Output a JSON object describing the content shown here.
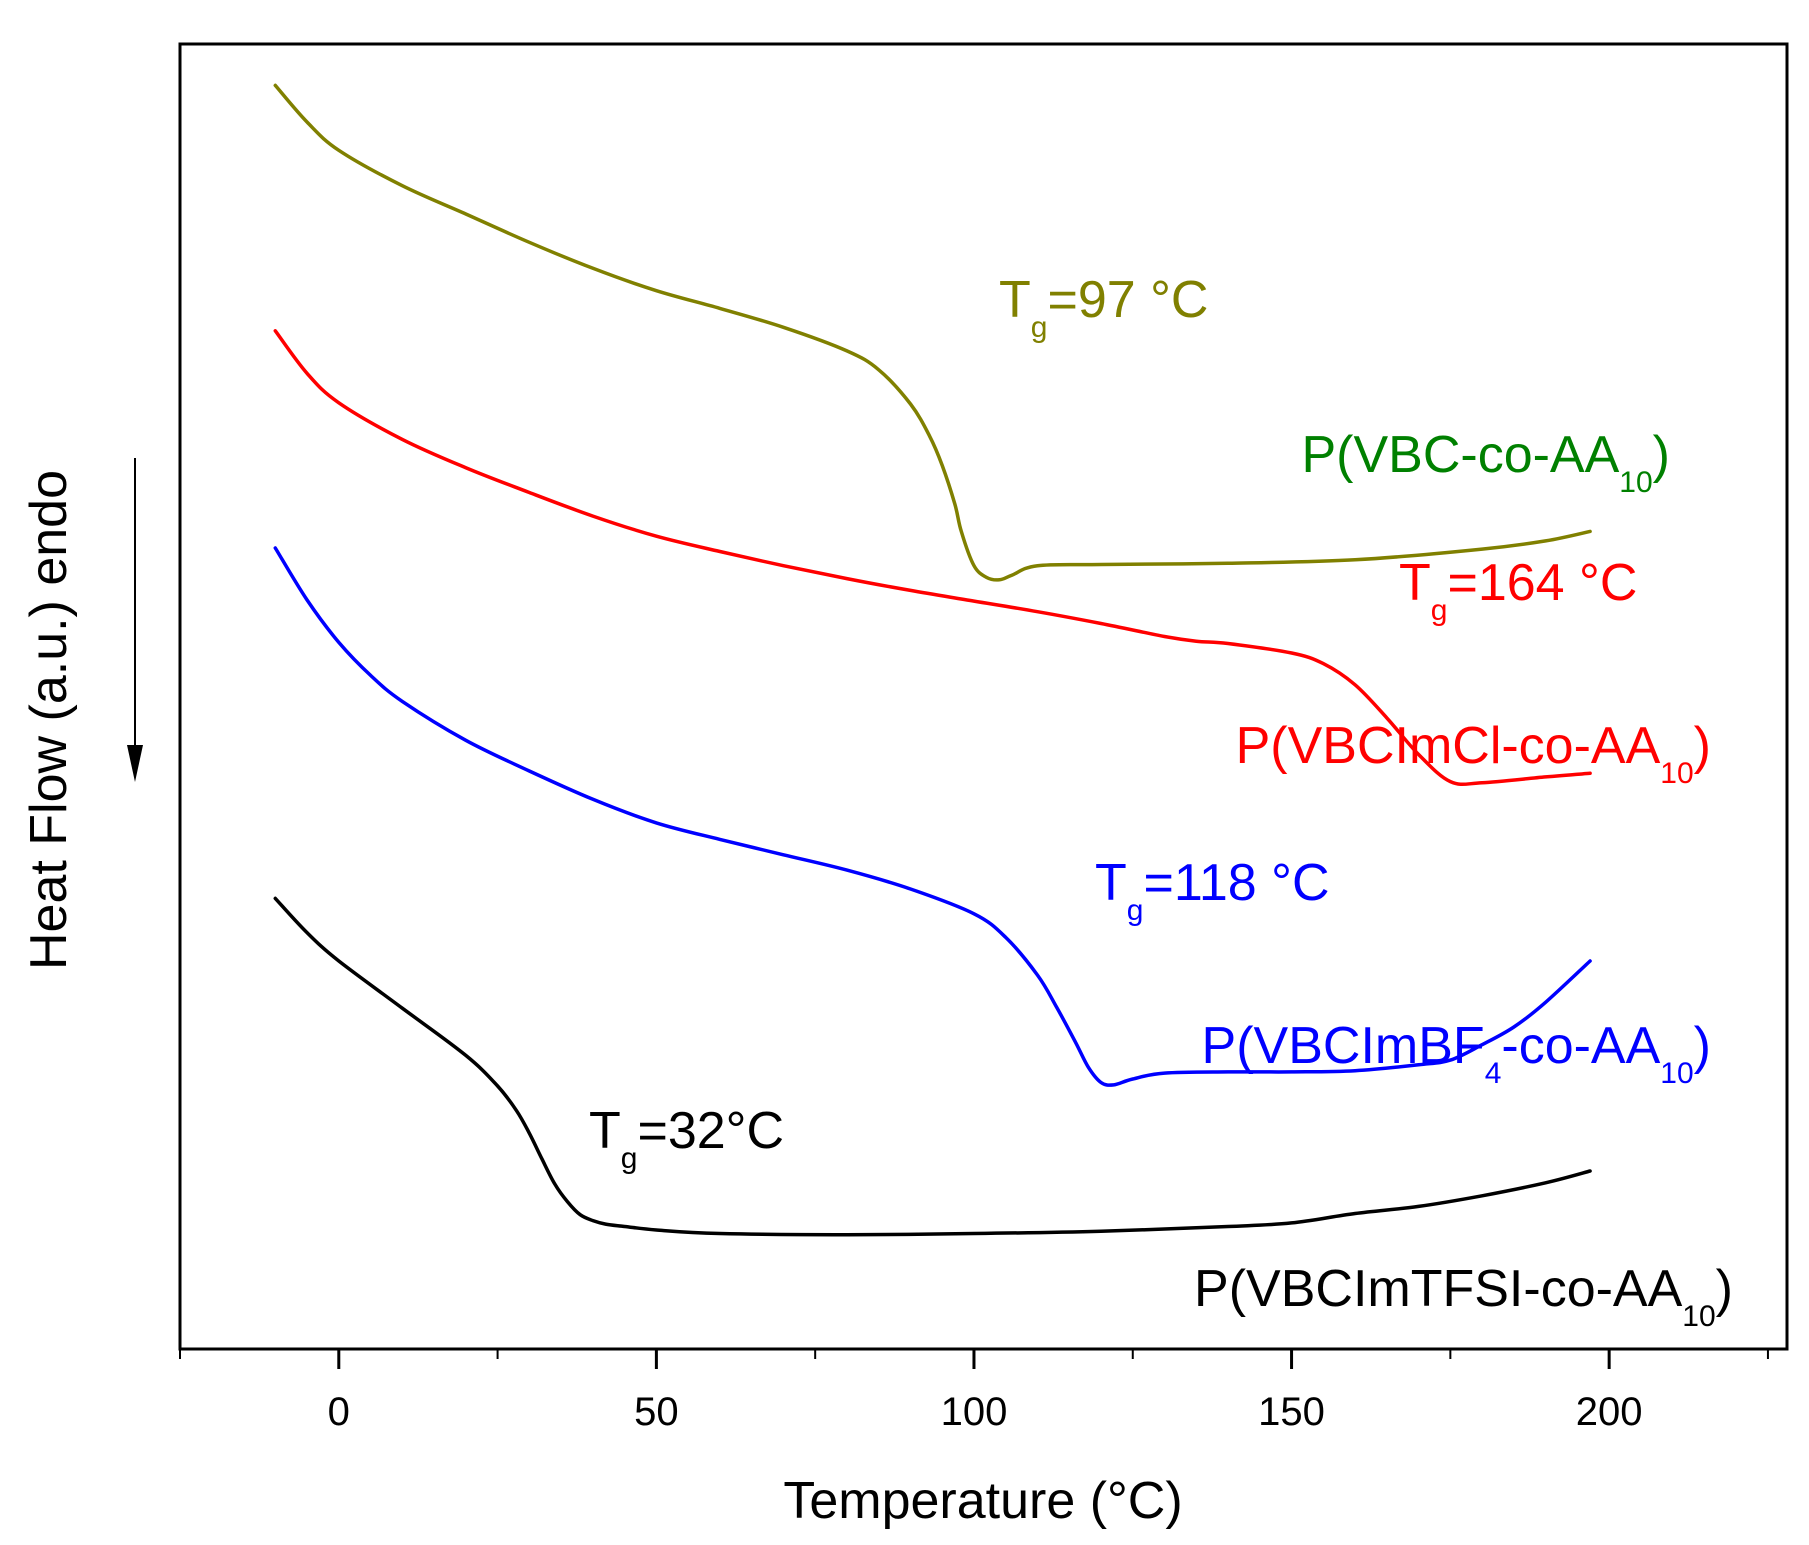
{
  "chart_data": {
    "type": "line",
    "title": "",
    "xlabel": "Temperature (°C)",
    "ylabel": "Heat Flow (a.u.) endo",
    "xlim": [
      -25,
      228
    ],
    "ylim": [
      0,
      100
    ],
    "xticks": [
      0,
      50,
      100,
      150,
      200
    ],
    "xtick_labels": [
      "0",
      "50",
      "100",
      "150",
      "200"
    ],
    "xminor_ticks": [
      -25,
      25,
      75,
      125,
      175,
      225
    ],
    "y_units": "arbitrary",
    "grid": false,
    "legend": "none (series labeled directly beside each curve)",
    "series": [
      {
        "name_parts": [
          "P(VBC-co-AA",
          "10",
          ")"
        ],
        "color": "#808000",
        "tg": {
          "base": "T",
          "sub": "g",
          "text": "=97 °C"
        },
        "x": [
          -10,
          -5,
          0,
          10,
          20,
          30,
          40,
          50,
          60,
          70,
          80,
          85,
          90,
          93,
          95,
          97,
          98,
          100,
          102,
          104,
          106,
          110,
          120,
          140,
          160,
          180,
          190,
          197
        ],
        "y": [
          97.0,
          93.9,
          91.5,
          88.5,
          86.1,
          83.7,
          81.5,
          79.6,
          78.1,
          76.5,
          74.5,
          72.9,
          70.0,
          67.3,
          64.8,
          61.5,
          59.2,
          56.3,
          55.3,
          55.1,
          55.5,
          56.3,
          56.4,
          56.5,
          56.8,
          57.7,
          58.4,
          59.2
        ]
      },
      {
        "name_parts": [
          "P(VBCImCl-co-AA",
          "10",
          ")"
        ],
        "color": "#ff0000",
        "tg": {
          "base": "T",
          "sub": "g",
          "text": "=164 °C"
        },
        "x": [
          -10,
          -5,
          0,
          10,
          20,
          30,
          40,
          50,
          60,
          70,
          80,
          90,
          100,
          110,
          120,
          130,
          135,
          140,
          150,
          155,
          160,
          165,
          170,
          175,
          180,
          190,
          197
        ],
        "y": [
          76.2,
          72.6,
          70.1,
          67.0,
          64.6,
          62.5,
          60.5,
          58.8,
          57.5,
          56.3,
          55.2,
          54.2,
          53.3,
          52.4,
          51.4,
          50.3,
          49.9,
          49.7,
          48.9,
          48.0,
          46.2,
          43.4,
          40.3,
          38.0,
          37.9,
          38.4,
          38.7
        ]
      },
      {
        "name_parts": [
          "P(VBCImBF",
          "4",
          "-co-AA",
          "10",
          ")"
        ],
        "color": "#0000ff",
        "tg": {
          "base": "T",
          "sub": "g",
          "text": "=118 °C"
        },
        "x": [
          -10,
          -5,
          0,
          5,
          10,
          20,
          30,
          40,
          50,
          60,
          70,
          80,
          90,
          100,
          105,
          110,
          113,
          116,
          118,
          120,
          122,
          125,
          130,
          140,
          150,
          160,
          170,
          175,
          180,
          185,
          190,
          197
        ],
        "y": [
          57.8,
          53.4,
          49.8,
          47.0,
          44.8,
          41.5,
          38.9,
          36.5,
          34.5,
          33.1,
          31.8,
          30.5,
          28.9,
          26.8,
          24.8,
          21.6,
          18.9,
          15.9,
          13.8,
          12.5,
          12.3,
          12.8,
          13.3,
          13.4,
          13.4,
          13.5,
          14.0,
          14.4,
          15.7,
          17.2,
          19.3,
          22.8
        ]
      },
      {
        "name_parts": [
          "P(VBCImTFSI-co-AA",
          "10",
          ")"
        ],
        "color": "#000000",
        "tg": {
          "base": "T",
          "sub": "g",
          "text": "=32°C"
        },
        "x": [
          -10,
          -5,
          0,
          10,
          20,
          25,
          28,
          30,
          32,
          34,
          36,
          38,
          40,
          42,
          45,
          50,
          60,
          80,
          100,
          120,
          140,
          150,
          160,
          170,
          180,
          190,
          197
        ],
        "y": [
          28.1,
          25.2,
          22.8,
          18.8,
          14.8,
          12.2,
          10.1,
          8.2,
          6.0,
          3.9,
          2.4,
          1.3,
          0.8,
          0.5,
          0.3,
          0.0,
          -0.3,
          -0.4,
          -0.3,
          -0.1,
          0.3,
          0.6,
          1.4,
          2.0,
          2.9,
          4.0,
          5.0
        ]
      }
    ]
  }
}
